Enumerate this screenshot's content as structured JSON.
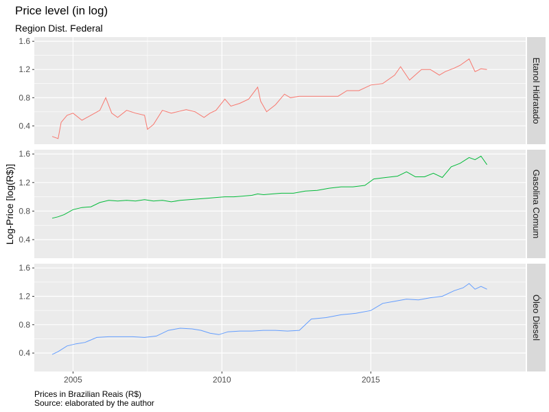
{
  "chart": {
    "title": "Price level (in log)",
    "subtitle": "Region Dist. Federal",
    "ylabel": "Log-Price [log(R$)]",
    "caption_line1": "Prices in Brazilian Reais (R$)",
    "caption_line2": "Source: elaborated by the author"
  },
  "chart_data": {
    "type": "line",
    "facets": "vertical",
    "x_ticks": [
      "2005",
      "2010",
      "2015"
    ],
    "x_tick_values": [
      2005,
      2010,
      2015
    ],
    "xlim": [
      2003.7,
      2020.2
    ],
    "y_ticks": [
      "0.4",
      "0.8",
      "1.2",
      "1.6"
    ],
    "y_tick_values": [
      0.4,
      0.8,
      1.2,
      1.6
    ],
    "ylim": [
      0.14,
      1.66
    ],
    "grid": true,
    "series": [
      {
        "name": "Etanol Hidratado",
        "color": "#F8766D",
        "x": [
          2004.3,
          2004.5,
          2004.6,
          2004.8,
          2005.0,
          2005.3,
          2005.6,
          2005.9,
          2006.1,
          2006.3,
          2006.5,
          2006.8,
          2007.1,
          2007.4,
          2007.5,
          2007.7,
          2008.0,
          2008.3,
          2008.5,
          2008.8,
          2009.1,
          2009.4,
          2009.6,
          2009.8,
          2010.1,
          2010.3,
          2010.6,
          2010.9,
          2011.2,
          2011.3,
          2011.5,
          2011.8,
          2012.1,
          2012.3,
          2012.6,
          2013.0,
          2013.5,
          2013.9,
          2014.2,
          2014.6,
          2015.0,
          2015.4,
          2015.8,
          2016.0,
          2016.3,
          2016.7,
          2017.0,
          2017.3,
          2017.5,
          2017.8,
          2018.0,
          2018.3,
          2018.5,
          2018.7,
          2018.9
        ],
        "values": [
          0.25,
          0.22,
          0.45,
          0.55,
          0.58,
          0.48,
          0.55,
          0.62,
          0.8,
          0.58,
          0.52,
          0.62,
          0.58,
          0.55,
          0.35,
          0.42,
          0.62,
          0.58,
          0.6,
          0.63,
          0.6,
          0.52,
          0.58,
          0.62,
          0.78,
          0.68,
          0.72,
          0.78,
          0.95,
          0.75,
          0.6,
          0.7,
          0.85,
          0.8,
          0.82,
          0.82,
          0.82,
          0.82,
          0.9,
          0.9,
          0.98,
          1.0,
          1.12,
          1.24,
          1.05,
          1.2,
          1.2,
          1.12,
          1.17,
          1.22,
          1.26,
          1.35,
          1.17,
          1.21,
          1.2
        ]
      },
      {
        "name": "Gasolina Comum",
        "color": "#00BA38",
        "x": [
          2004.3,
          2004.5,
          2004.7,
          2005.0,
          2005.3,
          2005.6,
          2005.9,
          2006.2,
          2006.5,
          2006.8,
          2007.1,
          2007.4,
          2007.7,
          2008.0,
          2008.3,
          2008.6,
          2008.9,
          2009.2,
          2009.5,
          2009.8,
          2010.1,
          2010.4,
          2010.7,
          2011.0,
          2011.2,
          2011.4,
          2011.7,
          2012.0,
          2012.4,
          2012.8,
          2013.2,
          2013.6,
          2014.0,
          2014.4,
          2014.8,
          2015.1,
          2015.5,
          2015.9,
          2016.2,
          2016.5,
          2016.8,
          2017.1,
          2017.4,
          2017.7,
          2018.0,
          2018.3,
          2018.5,
          2018.7,
          2018.9
        ],
        "values": [
          0.7,
          0.72,
          0.75,
          0.82,
          0.85,
          0.86,
          0.92,
          0.95,
          0.94,
          0.95,
          0.94,
          0.96,
          0.94,
          0.95,
          0.93,
          0.95,
          0.96,
          0.97,
          0.98,
          0.99,
          1.0,
          1.0,
          1.01,
          1.02,
          1.04,
          1.03,
          1.04,
          1.05,
          1.05,
          1.08,
          1.09,
          1.12,
          1.14,
          1.14,
          1.16,
          1.25,
          1.27,
          1.29,
          1.35,
          1.28,
          1.28,
          1.33,
          1.27,
          1.42,
          1.47,
          1.55,
          1.52,
          1.57,
          1.45
        ]
      },
      {
        "name": "Óleo Diesel",
        "color": "#619CFF",
        "x": [
          2004.3,
          2004.5,
          2004.8,
          2005.1,
          2005.4,
          2005.8,
          2006.2,
          2006.6,
          2007.0,
          2007.4,
          2007.8,
          2008.2,
          2008.6,
          2009.0,
          2009.3,
          2009.6,
          2009.9,
          2010.2,
          2010.6,
          2011.0,
          2011.4,
          2011.8,
          2012.2,
          2012.6,
          2013.0,
          2013.5,
          2014.0,
          2014.5,
          2015.0,
          2015.4,
          2015.8,
          2016.2,
          2016.6,
          2017.0,
          2017.4,
          2017.8,
          2018.1,
          2018.3,
          2018.5,
          2018.7,
          2018.9
        ],
        "values": [
          0.38,
          0.42,
          0.5,
          0.53,
          0.55,
          0.62,
          0.63,
          0.63,
          0.63,
          0.62,
          0.64,
          0.72,
          0.75,
          0.74,
          0.72,
          0.68,
          0.66,
          0.7,
          0.71,
          0.71,
          0.72,
          0.72,
          0.71,
          0.72,
          0.88,
          0.9,
          0.94,
          0.96,
          1.0,
          1.1,
          1.13,
          1.16,
          1.15,
          1.18,
          1.2,
          1.28,
          1.32,
          1.38,
          1.3,
          1.34,
          1.3
        ]
      }
    ]
  }
}
